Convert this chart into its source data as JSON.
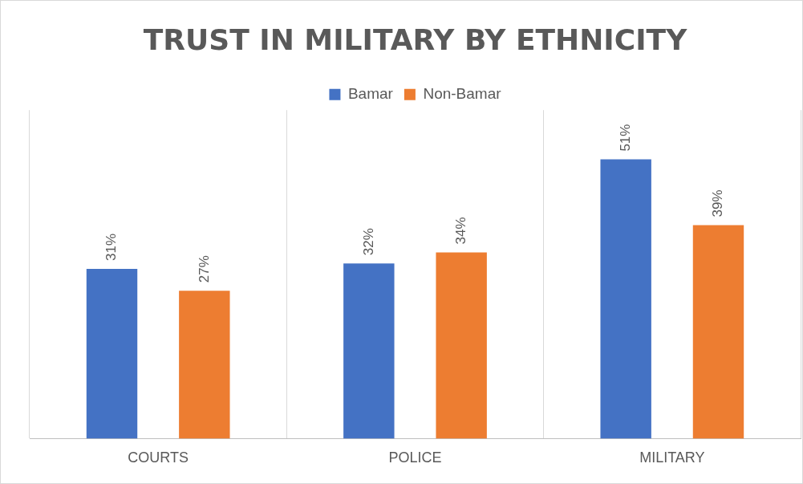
{
  "chart_data": {
    "type": "bar",
    "title": "TRUST IN MILITARY BY ETHNICITY",
    "categories": [
      "COURTS",
      "POLICE",
      "MILITARY"
    ],
    "series": [
      {
        "name": "Bamar",
        "color": "#4472c4",
        "values": [
          31,
          32,
          51
        ],
        "value_labels": [
          "31%",
          "32%",
          "51%"
        ]
      },
      {
        "name": "Non-Bamar",
        "color": "#ed7d31",
        "values": [
          27,
          34,
          39
        ],
        "value_labels": [
          "27%",
          "34%",
          "39%"
        ]
      }
    ],
    "grid": "x",
    "legend": "top"
  }
}
